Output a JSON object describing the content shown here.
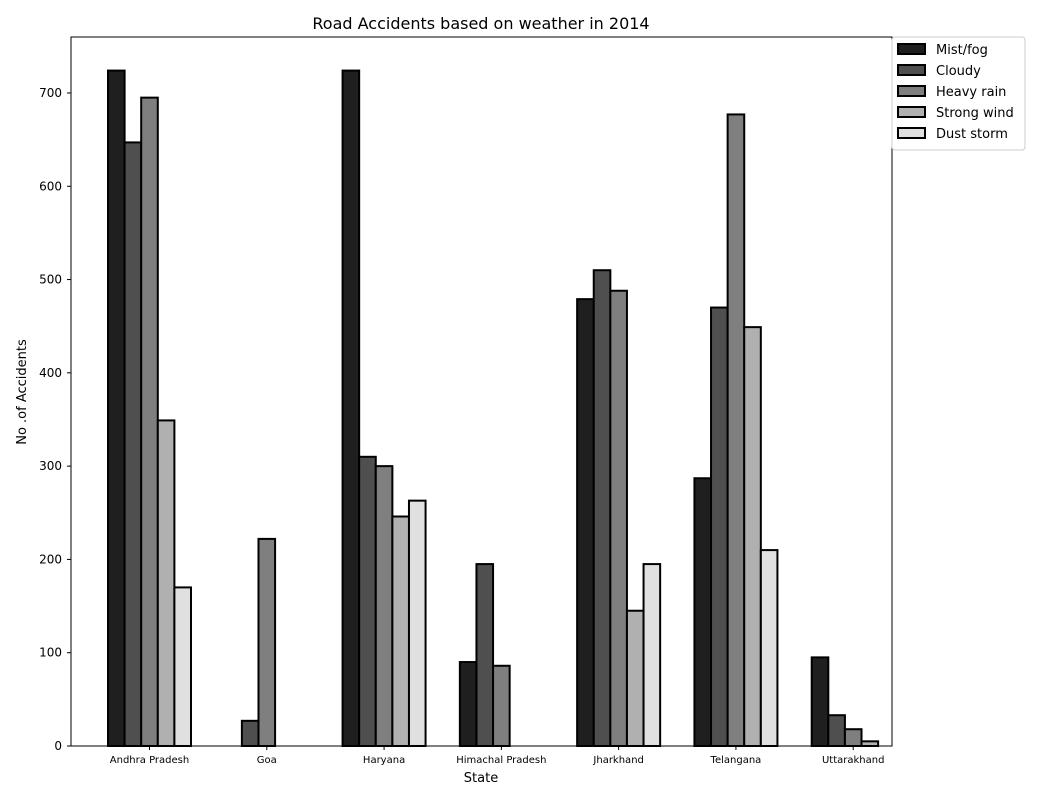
{
  "chart_data": {
    "type": "bar",
    "title": "Road Accidents based on weather in 2014",
    "xlabel": "State",
    "ylabel": "No .of Accidents",
    "categories": [
      "Andhra Pradesh",
      "Goa",
      "Haryana",
      "Himachal Pradesh",
      "Jharkhand",
      "Telangana",
      "Uttarakhand"
    ],
    "series": [
      {
        "name": "Mist/fog",
        "color": "#1f1f1f",
        "values": [
          724,
          0,
          724,
          90,
          479,
          287,
          95
        ]
      },
      {
        "name": "Cloudy",
        "color": "#4f4f4f",
        "values": [
          647,
          27,
          310,
          195,
          510,
          470,
          33
        ]
      },
      {
        "name": "Heavy rain",
        "color": "#7f7f7f",
        "values": [
          695,
          222,
          300,
          86,
          488,
          677,
          18
        ]
      },
      {
        "name": "Strong wind",
        "color": "#b0b0b0",
        "values": [
          349,
          0,
          246,
          0,
          145,
          449,
          5
        ]
      },
      {
        "name": "Dust storm",
        "color": "#e0e0e0",
        "values": [
          170,
          0,
          263,
          0,
          195,
          210,
          0
        ]
      }
    ],
    "ylim": [
      0,
      760
    ],
    "yticks": [
      "0",
      "100",
      "200",
      "300",
      "400",
      "500",
      "600",
      "700"
    ],
    "grid": false,
    "legend_position": "top-right outside"
  }
}
